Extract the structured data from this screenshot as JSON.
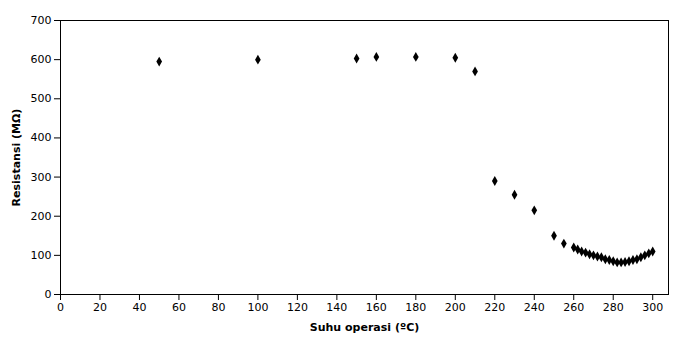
{
  "chart_data": {
    "type": "scatter",
    "x": [
      50,
      100,
      150,
      160,
      180,
      200,
      210,
      220,
      230,
      240,
      250,
      255,
      260,
      262,
      264,
      266,
      268,
      270,
      272,
      274,
      276,
      278,
      280,
      282,
      284,
      286,
      288,
      290,
      292,
      294,
      296,
      298,
      300
    ],
    "values": [
      595,
      600,
      603,
      607,
      607,
      605,
      570,
      290,
      255,
      215,
      150,
      130,
      120,
      115,
      110,
      107,
      103,
      100,
      97,
      95,
      90,
      88,
      85,
      82,
      82,
      83,
      85,
      88,
      90,
      95,
      100,
      105,
      110
    ],
    "xlabel": "Suhu operasi (ºC)",
    "ylabel": "Resistansi (MΩ)",
    "xlim": [
      0,
      308
    ],
    "ylim": [
      0,
      700
    ],
    "xticks": [
      0,
      20,
      40,
      60,
      80,
      100,
      120,
      140,
      160,
      180,
      200,
      220,
      240,
      260,
      280,
      300
    ],
    "yticks": [
      0,
      100,
      200,
      300,
      400,
      500,
      600,
      700
    ],
    "marker": "diamond",
    "color": "black",
    "grid": false
  }
}
